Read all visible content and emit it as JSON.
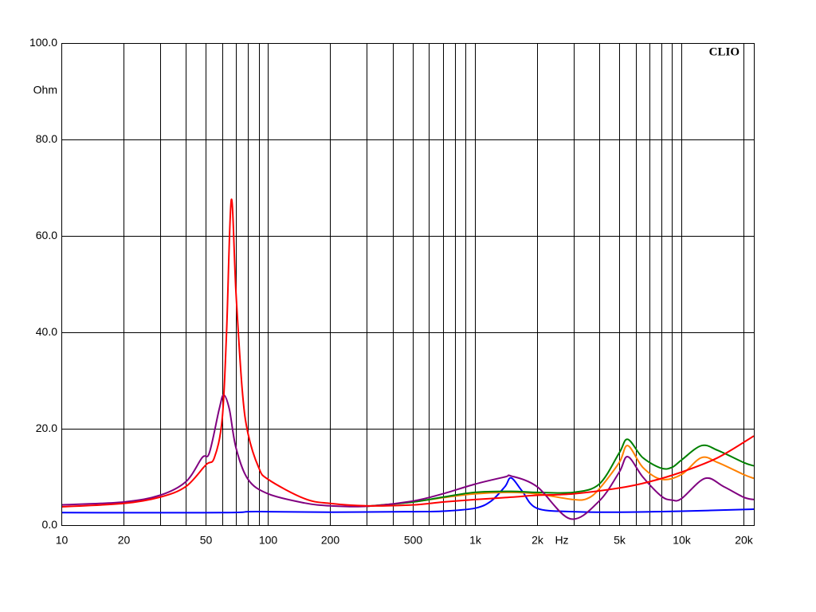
{
  "chart_data": {
    "type": "line",
    "brand": "CLIO",
    "y_label": "Ohm",
    "x_label": "Hz",
    "xscale": "log",
    "grid": true,
    "xlim": [
      10,
      22400
    ],
    "ylim": [
      0,
      100
    ],
    "yticks": [
      {
        "value": 0,
        "label": "0.0"
      },
      {
        "value": 20,
        "label": "20.0"
      },
      {
        "value": 40,
        "label": "40.0"
      },
      {
        "value": 60,
        "label": "60.0"
      },
      {
        "value": 80,
        "label": "80.0"
      },
      {
        "value": 100,
        "label": "100.0"
      }
    ],
    "xticks": [
      10,
      20,
      50,
      100,
      200,
      500,
      {
        "value": 1000,
        "label": "1k"
      },
      {
        "value": 2000,
        "label": "2k"
      },
      {
        "value": 5000,
        "label": "5k"
      },
      {
        "value": 10000,
        "label": "10k"
      },
      {
        "value": 20000,
        "label": "20k"
      }
    ],
    "minor_xticks": [
      30,
      40,
      60,
      70,
      80,
      90,
      300,
      400,
      600,
      700,
      800,
      900,
      3000,
      4000,
      6000,
      7000,
      8000,
      9000
    ],
    "series": [
      {
        "color": "#0000ff",
        "x": [
          10,
          60,
          80,
          100,
          200,
          500,
          700,
          1000,
          1200,
          1400,
          1500,
          1700,
          2000,
          3000,
          5000,
          10000,
          22400
        ],
        "values": [
          2.6,
          2.6,
          2.8,
          2.8,
          2.7,
          2.8,
          2.9,
          3.5,
          5,
          8,
          9.8,
          7,
          3.5,
          2.8,
          2.7,
          2.9,
          3.3
        ]
      },
      {
        "color": "#ff8000",
        "x": [
          300,
          500,
          700,
          1000,
          1500,
          2000,
          3000,
          3500,
          4000,
          5000,
          5500,
          6500,
          8000,
          10000,
          12500,
          15000,
          20000,
          22400
        ],
        "values": [
          3.9,
          4.8,
          5.7,
          6.5,
          6.8,
          6.5,
          5.3,
          5.5,
          7.5,
          13,
          16.5,
          12,
          9.5,
          10.5,
          14,
          13,
          10.5,
          9.7
        ]
      },
      {
        "color": "#008000",
        "x": [
          300,
          500,
          700,
          1000,
          1500,
          2000,
          3000,
          4000,
          5000,
          5500,
          6500,
          8000,
          9000,
          10000,
          12500,
          15000,
          20000,
          22400
        ],
        "values": [
          3.9,
          4.8,
          5.8,
          6.8,
          7,
          6.8,
          6.8,
          8.5,
          15,
          17.8,
          14,
          11.8,
          12,
          13.5,
          16.5,
          15.5,
          13,
          12.3
        ]
      },
      {
        "color": "#800080",
        "x": [
          10,
          20,
          30,
          40,
          48,
          52,
          58,
          61,
          65,
          70,
          80,
          100,
          150,
          200,
          300,
          500,
          700,
          1000,
          1400,
          1500,
          2000,
          2900,
          4000,
          5000,
          5500,
          6500,
          8000,
          9000,
          10000,
          13000,
          16000,
          20000,
          22400
        ],
        "values": [
          4.2,
          4.8,
          6.2,
          9,
          14,
          15,
          24,
          27,
          24,
          16,
          9.5,
          6.5,
          4.6,
          4,
          3.9,
          5,
          6.5,
          8.5,
          10,
          10.2,
          8,
          1.3,
          5,
          11,
          14.2,
          10,
          6,
          5.2,
          5.5,
          9.7,
          8,
          5.8,
          5.3
        ]
      },
      {
        "color": "#ff0000",
        "x": [
          10,
          20,
          30,
          40,
          50,
          55,
          60,
          63,
          66.4,
          70,
          75,
          80,
          90,
          100,
          150,
          200,
          300,
          500,
          700,
          1000,
          1500,
          2000,
          3000,
          5000,
          7000,
          10000,
          15000,
          22400
        ],
        "values": [
          3.8,
          4.5,
          5.8,
          8,
          12.5,
          14,
          22,
          40,
          67.5,
          48,
          28,
          19,
          12,
          9.5,
          5.5,
          4.5,
          4,
          4.2,
          4.8,
          5.3,
          5.8,
          6.2,
          6.5,
          7.7,
          9,
          11,
          14,
          18.5
        ]
      }
    ]
  }
}
